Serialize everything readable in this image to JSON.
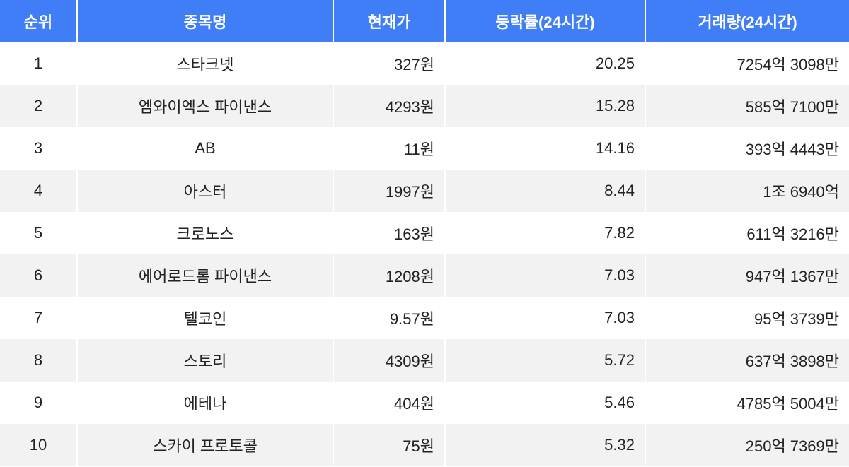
{
  "table": {
    "columns": [
      "순위",
      "종목명",
      "현재가",
      "등락률(24시간)",
      "거래량(24시간)"
    ],
    "rows": [
      [
        "1",
        "스타크넷",
        "327원",
        "20.25",
        "7254억 3098만"
      ],
      [
        "2",
        "엠와이엑스 파이낸스",
        "4293원",
        "15.28",
        "585억 7100만"
      ],
      [
        "3",
        "AB",
        "11원",
        "14.16",
        "393억 4443만"
      ],
      [
        "4",
        "아스터",
        "1997원",
        "8.44",
        "1조 6940억"
      ],
      [
        "5",
        "크로노스",
        "163원",
        "7.82",
        "611억 3216만"
      ],
      [
        "6",
        "에어로드롬 파이낸스",
        "1208원",
        "7.03",
        "947억 1367만"
      ],
      [
        "7",
        "텔코인",
        "9.57원",
        "7.03",
        "95억 3739만"
      ],
      [
        "8",
        "스토리",
        "4309원",
        "5.72",
        "637억 3898만"
      ],
      [
        "9",
        "에테나",
        "404원",
        "5.46",
        "4785억 5004만"
      ],
      [
        "10",
        "스카이 프로토콜",
        "75원",
        "5.32",
        "250억 7369만"
      ]
    ]
  }
}
